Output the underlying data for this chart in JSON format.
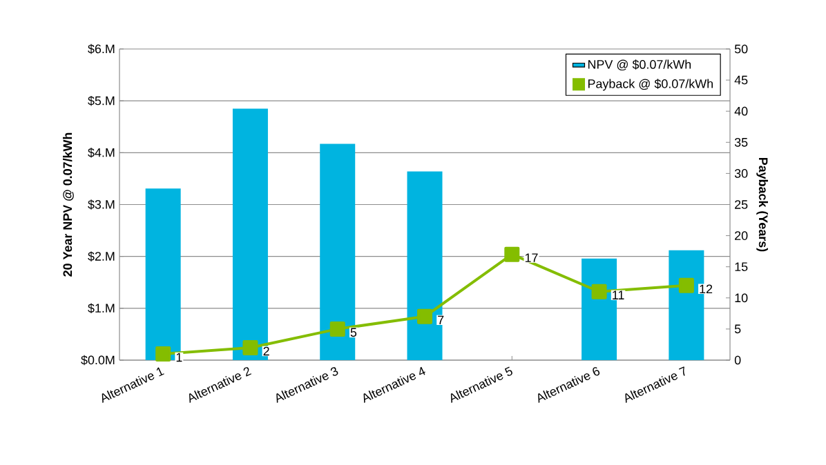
{
  "chart_data": {
    "type": "bar",
    "categories": [
      "Alternative 1",
      "Alternative 2",
      "Alternative 3",
      "Alternative 4",
      "Alternative 5",
      "Alternative 6",
      "Alternative 7"
    ],
    "ylabel": "20 Year NPV @ 0.07/kWh",
    "y2label": "Payback (Years)",
    "ylim": [
      0,
      6
    ],
    "yticks": [
      {
        "value": 0,
        "label": "$0.0M"
      },
      {
        "value": 1,
        "label": "$1.M"
      },
      {
        "value": 2,
        "label": "$2.M"
      },
      {
        "value": 3,
        "label": "$3.M"
      },
      {
        "value": 4,
        "label": "$4.M"
      },
      {
        "value": 5,
        "label": "$5.M"
      },
      {
        "value": 6,
        "label": "$6.M"
      }
    ],
    "y2lim": [
      0,
      50
    ],
    "y2ticks": [
      0,
      5,
      10,
      15,
      20,
      25,
      30,
      35,
      40,
      45,
      50
    ],
    "grid": "y",
    "legend": "top right",
    "series": [
      {
        "name": "NPV @ $0.07/kWh",
        "color": "#00b4e0",
        "values": [
          3.31,
          4.85,
          4.17,
          3.64,
          0,
          1.96,
          2.12
        ]
      },
      {
        "name": "Payback @ $0.07/kWh",
        "type": "line",
        "axis": "y2",
        "marker": "square",
        "color": "#84bd00",
        "values": [
          1,
          2,
          5,
          7,
          17,
          11,
          12
        ],
        "value_labels": [
          "1",
          "2",
          "5",
          "7",
          "17",
          "11",
          "12"
        ]
      }
    ]
  }
}
